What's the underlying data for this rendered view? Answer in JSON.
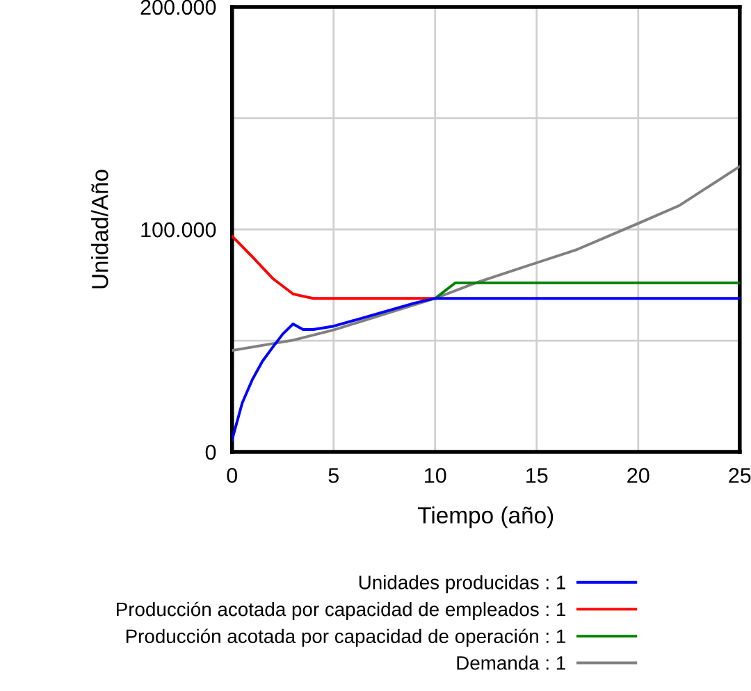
{
  "chart_data": {
    "type": "line",
    "xlabel": "Tiempo (año)",
    "ylabel": "Unidad/Año",
    "xlim": [
      0,
      25
    ],
    "xticks": [
      0,
      5,
      10,
      15,
      20,
      25
    ],
    "ylim": [
      0,
      200000
    ],
    "yticks": [
      {
        "value": 0,
        "label": "0"
      },
      {
        "value": 50000,
        "label": null
      },
      {
        "value": 100000,
        "label": "100.000"
      },
      {
        "value": 150000,
        "label": null
      },
      {
        "value": 200000,
        "label": "200.000"
      }
    ],
    "grid": true,
    "legend": "bottom",
    "series": [
      {
        "name": "Unidades producidas : 1",
        "color": "#0000ff",
        "x": [
          0,
          0.5,
          1,
          1.5,
          2,
          2.5,
          3,
          3.5,
          4,
          5,
          7,
          9,
          10,
          13,
          16,
          19,
          22,
          25
        ],
        "values": [
          5400,
          22000,
          32500,
          40800,
          47000,
          53000,
          57500,
          55000,
          55000,
          56500,
          61700,
          66900,
          69000,
          69000,
          69000,
          69000,
          69000,
          69000
        ]
      },
      {
        "name": "Producción acotada por capacidad de empleados : 1",
        "color": "#ff0000",
        "x": [
          0,
          1,
          2,
          3,
          3.5,
          4,
          7,
          10
        ],
        "values": [
          97000,
          87700,
          78000,
          71000,
          70000,
          69000,
          69000,
          69000
        ]
      },
      {
        "name": "Producción acotada por capacidad de operación : 1",
        "color": "#008000",
        "x": [
          10,
          11,
          13,
          16,
          19,
          22,
          25
        ],
        "values": [
          69000,
          76000,
          76000,
          76000,
          76000,
          76000,
          76000
        ]
      },
      {
        "name": "Demanda : 1",
        "color": "#808080",
        "x": [
          0,
          3,
          5,
          10,
          12,
          15,
          17,
          20,
          22,
          25
        ],
        "values": [
          45600,
          50200,
          54800,
          69000,
          76000,
          85000,
          91000,
          102700,
          110600,
          128300
        ]
      }
    ]
  }
}
